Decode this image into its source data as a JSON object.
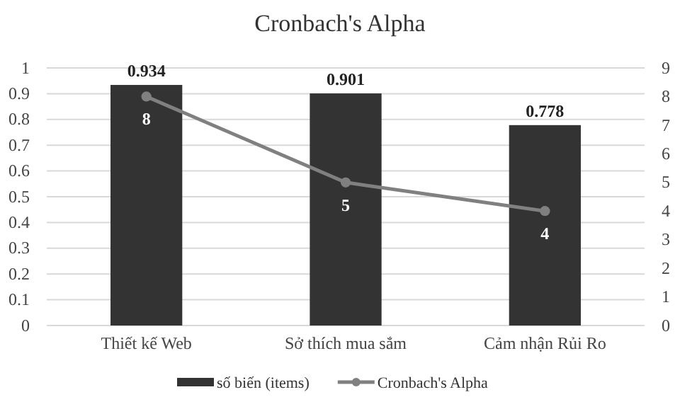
{
  "chart_data": {
    "type": "bar",
    "title": "Cronbach's Alpha",
    "categories": [
      "Thiết kế Web",
      "Sở thích mua sắm",
      "Cảm nhận Rủi Ro"
    ],
    "series": [
      {
        "name": "số biến (items)",
        "color": "#333333",
        "values": [
          0.934,
          0.901,
          0.778
        ]
      },
      {
        "name": "Cronbach's Alpha",
        "type": "line",
        "axis": "y2",
        "color": "#808080",
        "values": [
          8,
          5,
          4
        ]
      }
    ],
    "ylim": [
      0,
      1
    ],
    "yticks": [
      0,
      0.1,
      0.2,
      0.3,
      0.4,
      0.5,
      0.6,
      0.7,
      0.8,
      0.9,
      1
    ],
    "y2lim": [
      0,
      9
    ],
    "y2ticks": [
      0,
      1,
      2,
      3,
      4,
      5,
      6,
      7,
      8,
      9
    ],
    "grid": "y",
    "legend": "bottom",
    "marker": "circle",
    "line_style": "solid",
    "data_labels": true
  }
}
